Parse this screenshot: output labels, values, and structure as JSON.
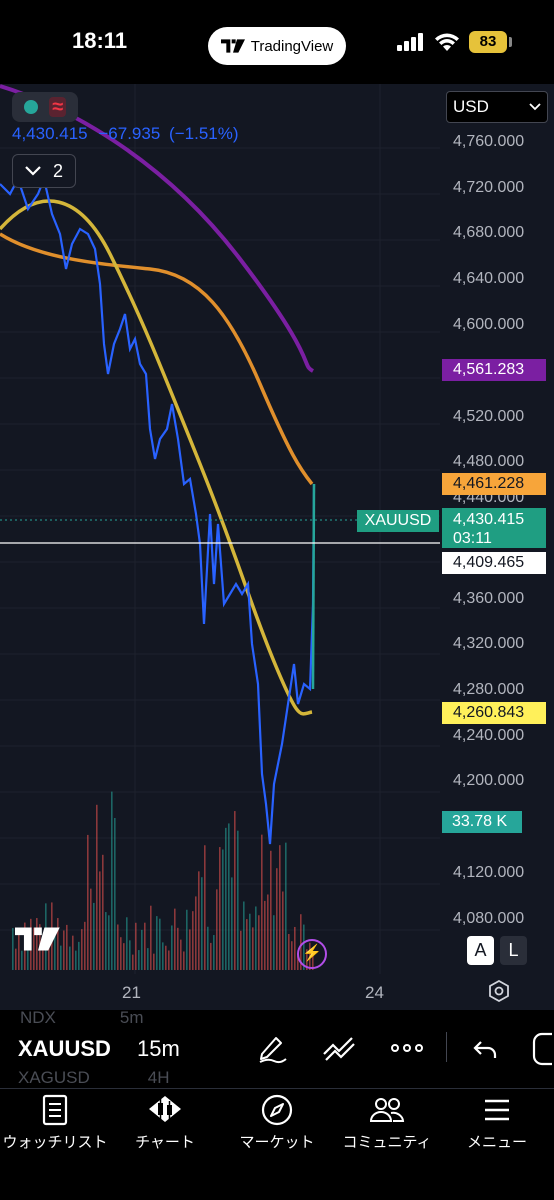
{
  "status_bar": {
    "time": "18:11",
    "app_pill": "TradingView",
    "battery": "83"
  },
  "chart_header": {
    "price": "4,430.415",
    "change": "−67.935",
    "change_pct": "(−1.51%)",
    "collapsed_count": "2",
    "currency": "USD"
  },
  "price_axis": [
    "4,760.000",
    "4,720.000",
    "4,680.000",
    "4,640.000",
    "4,600.000",
    "4,520.000",
    "4,480.000",
    "4,440.000",
    "4,360.000",
    "4,320.000",
    "4,280.000",
    "4,240.000",
    "4,200.000",
    "4,120.000",
    "4,080.000"
  ],
  "tags": {
    "purple": "4,561.283",
    "orange": "4,461.228",
    "symbol": "XAUUSD",
    "current_price": "4,430.415",
    "countdown": "03:11",
    "crosshair": "4,409.465",
    "yellow": "4,260.843",
    "volume": "33.78 K"
  },
  "time_axis": [
    "21",
    "24"
  ],
  "chart_buttons": {
    "auto": "A",
    "log": "L"
  },
  "colors": {
    "background": "#131722",
    "price_line": "#2962ff",
    "ma_yellow": "#d4b63a",
    "ma_orange": "#e08f2c",
    "ma_purple": "#7b1fa2",
    "up": "#26a69a",
    "down": "#ef5350"
  },
  "toolbar": {
    "symbol": "XAUUSD",
    "interval": "15m",
    "ghost_top_symbol": "NDX",
    "ghost_top_interval": "5m",
    "ghost_bottom_symbol": "XAGUSD",
    "ghost_bottom_interval": "4H"
  },
  "nav": [
    {
      "label": "ウォッチリスト",
      "icon": "watchlist-icon"
    },
    {
      "label": "チャート",
      "icon": "chart-icon"
    },
    {
      "label": "マーケット",
      "icon": "compass-icon"
    },
    {
      "label": "コミュニティ",
      "icon": "community-icon"
    },
    {
      "label": "メニュー",
      "icon": "menu-icon"
    }
  ]
}
